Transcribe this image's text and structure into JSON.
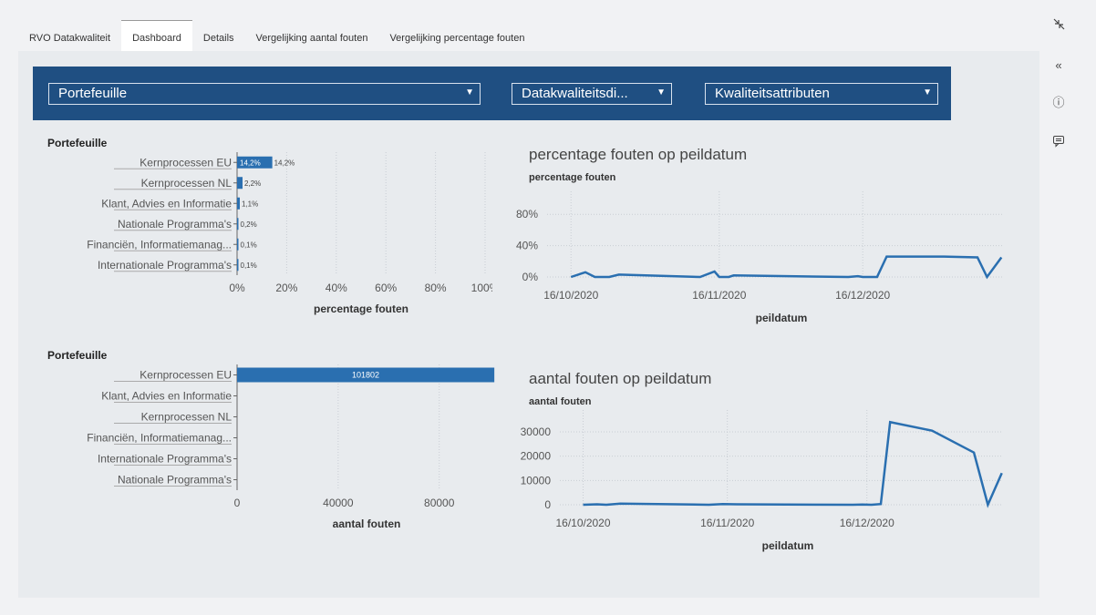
{
  "tabs": [
    "RVO Datakwaliteit",
    "Dashboard",
    "Details",
    "Vergelijking aantal fouten",
    "Vergelijking percentage fouten"
  ],
  "active_tab": 1,
  "filters": {
    "portefeuille": "Portefeuille",
    "datakwaliteitsdimensie": "Datakwaliteitsdi...",
    "kwaliteitsattributen": "Kwaliteitsattributen",
    "dropdown_icon": "triangle-down-icon"
  },
  "side_icons": {
    "collapse": "«",
    "info": "ⓘ",
    "comment": "comment-icon",
    "minimize": "minimize-arrows-icon"
  },
  "pct_bar_chart": {
    "title": "Portefeuille",
    "chart_data": {
      "type": "bar",
      "orientation": "horizontal",
      "categories": [
        "Kernprocessen EU",
        "Kernprocessen NL",
        "Klant, Advies en Informatie",
        "Nationale Programma's",
        "Financiën, Informatiemanag...",
        "Internationale Programma's"
      ],
      "values": [
        14.2,
        2.2,
        1.1,
        0.2,
        0.1,
        0.1
      ],
      "data_labels": [
        "14,2%",
        "2,2%",
        "1,1%",
        "0,2%",
        "0,1%",
        "0,1%"
      ],
      "inside_label": "14,2%",
      "xticks": [
        "0%",
        "20%",
        "40%",
        "60%",
        "80%",
        "100%"
      ],
      "xlim": [
        0,
        100
      ],
      "xlabel": "percentage fouten"
    }
  },
  "count_bar_chart": {
    "title": "Portefeuille",
    "chart_data": {
      "type": "bar",
      "orientation": "horizontal",
      "categories": [
        "Kernprocessen EU",
        "Klant, Advies en Informatie",
        "Kernprocessen NL",
        "Financiën, Informatiemanag...",
        "Internationale Programma's",
        "Nationale Programma's"
      ],
      "values": [
        101802,
        0,
        0,
        0,
        0,
        0
      ],
      "data_labels": [
        "101802"
      ],
      "xticks": [
        "0",
        "40000",
        "80000"
      ],
      "xlim": [
        0,
        105000
      ],
      "xlabel": "aantal fouten"
    }
  },
  "pct_line_chart": {
    "title": "percentage fouten op peildatum",
    "chart_data": {
      "type": "line",
      "x": [
        "2020-10-16",
        "2020-10-19",
        "2020-10-21",
        "2020-10-22",
        "2020-10-24",
        "2020-10-26",
        "2020-11-12",
        "2020-11-15",
        "2020-11-16",
        "2020-11-18",
        "2020-11-19",
        "2020-12-13",
        "2020-12-15",
        "2020-12-16",
        "2020-12-19",
        "2020-12-21",
        "2020-12-27",
        "2021-01-02",
        "2021-01-09",
        "2021-01-11",
        "2021-01-14"
      ],
      "values": [
        0,
        6,
        0,
        0,
        0,
        3,
        0,
        7,
        0,
        0,
        2,
        0,
        1,
        0,
        0,
        26,
        26,
        26,
        25,
        0,
        25
      ],
      "yticks": [
        "0%",
        "40%",
        "80%"
      ],
      "ylim": [
        0,
        100
      ],
      "xticks": [
        "16/10/2020",
        "16/11/2020",
        "16/12/2020"
      ],
      "ylabel": "percentage fouten",
      "xlabel": "peildatum",
      "color": "#2a6fb0"
    }
  },
  "count_line_chart": {
    "title": "aantal fouten op peildatum",
    "chart_data": {
      "type": "line",
      "x": [
        "2020-10-16",
        "2020-10-19",
        "2020-10-21",
        "2020-10-24",
        "2020-11-12",
        "2020-11-15",
        "2020-11-18",
        "2020-12-13",
        "2020-12-15",
        "2020-12-17",
        "2020-12-19",
        "2020-12-21",
        "2020-12-30",
        "2021-01-08",
        "2021-01-11",
        "2021-01-14"
      ],
      "values": [
        0,
        200,
        0,
        500,
        0,
        300,
        200,
        0,
        100,
        0,
        300,
        34000,
        30500,
        21500,
        0,
        13000
      ],
      "yticks": [
        "0",
        "10000",
        "20000",
        "30000"
      ],
      "ylim": [
        0,
        36000
      ],
      "xticks": [
        "16/10/2020",
        "16/11/2020",
        "16/12/2020"
      ],
      "ylabel": "aantal fouten",
      "xlabel": "peildatum",
      "color": "#2a6fb0"
    }
  }
}
